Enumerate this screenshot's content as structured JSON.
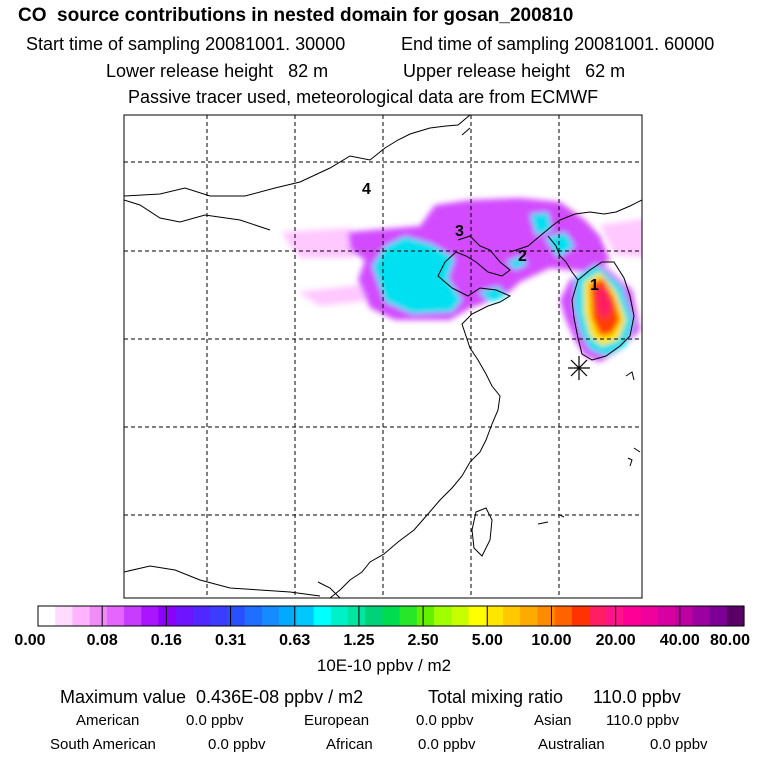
{
  "title": "CO  source contributions in nested domain for gosan_200810",
  "sampling": {
    "start": "Start time of sampling 20081001. 30000",
    "end": "End time of sampling 20081001. 60000"
  },
  "release": {
    "lower": "Lower release height   82 m",
    "upper": "Upper release height   62 m"
  },
  "note": "Passive tracer used, meteorological data are from ECMWF",
  "map": {
    "labels": [
      "4",
      "3",
      "2",
      "1"
    ],
    "receptor_marker": "asterisk"
  },
  "colorbar": {
    "ticks": [
      "0.00",
      "0.08",
      "0.16",
      "0.31",
      "0.63",
      "1.25",
      "2.50",
      "5.00",
      "10.00",
      "20.00",
      "40.00",
      "80.00"
    ],
    "colors": [
      "#ffffff",
      "#ffdcff",
      "#ffb4ff",
      "#f08cf5",
      "#e664ff",
      "#c83cff",
      "#aa14ff",
      "#8c00ff",
      "#6e14ff",
      "#5028ff",
      "#3c3cff",
      "#2850ff",
      "#1e6eff",
      "#148cff",
      "#00aaff",
      "#00c8ff",
      "#00ffff",
      "#00f0c8",
      "#00e6a0",
      "#00d278",
      "#00dc50",
      "#28e628",
      "#64f000",
      "#a0ff00",
      "#c8ff00",
      "#ffff00",
      "#ffe600",
      "#ffc800",
      "#ffaa00",
      "#ff8c00",
      "#ff6400",
      "#ff3200",
      "#ff1e64",
      "#ff148c",
      "#ff0096",
      "#f0009b",
      "#d700a0",
      "#be00a0",
      "#9b00a0",
      "#7d0096",
      "#5a0064"
    ],
    "units": "10E-10 ppbv / m2"
  },
  "summary": {
    "maximum": "Maximum value  0.436E-08 ppbv / m2",
    "total": "Total mixing ratio      110.0 ppbv"
  },
  "regions": [
    {
      "name": "American",
      "value": "0.0 ppbv"
    },
    {
      "name": "European",
      "value": "0.0 ppbv"
    },
    {
      "name": "Asian",
      "value": "110.0 ppbv"
    },
    {
      "name": "South American",
      "value": "0.0 ppbv"
    },
    {
      "name": "African",
      "value": "0.0 ppbv"
    },
    {
      "name": "Australian",
      "value": "0.0 ppbv"
    }
  ]
}
